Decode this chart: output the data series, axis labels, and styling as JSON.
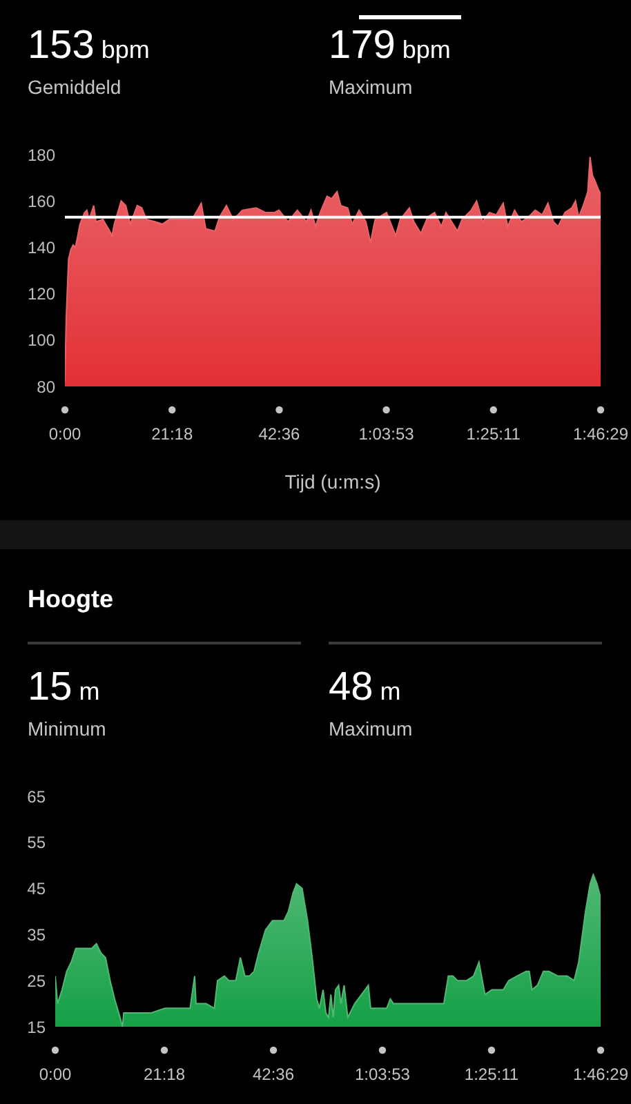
{
  "chart_data": [
    {
      "type": "area",
      "xlabel": "Tijd (u:m:s)",
      "annotations": [
        "153 bpm",
        "Gemiddeld",
        "179 bpm",
        "Maximum"
      ],
      "x": [
        0,
        16,
        44,
        71,
        98,
        125,
        153,
        180,
        235,
        262,
        289,
        344,
        371,
        453,
        535,
        562,
        589,
        671,
        726,
        780,
        862,
        917,
        971,
        1080,
        1162,
        1244,
        1408,
        1517,
        1626,
        1680,
        1790,
        1844,
        1926,
        2008,
        2117,
        2281,
        2390,
        2499,
        2553,
        2662,
        2772,
        2881,
        2935,
        2990,
        3044,
        3126,
        3181,
        3246,
        3290,
        3372,
        3426,
        3508,
        3590,
        3645,
        3699,
        3836,
        3945,
        3999,
        4108,
        4163,
        4245,
        4327,
        4408,
        4490,
        4545,
        4681,
        4736,
        4845,
        4910,
        4981,
        5063,
        5145,
        5227,
        5281,
        5363,
        5445,
        5527,
        5609,
        5691,
        5761,
        5827,
        5882,
        5963,
        6045,
        6089,
        6127,
        6182,
        6236,
        6263,
        6291,
        6318,
        6362,
        6389
      ],
      "values": [
        82,
        110,
        135,
        139,
        141,
        140,
        145,
        150,
        155,
        156,
        152,
        158,
        151,
        152,
        147,
        145,
        150,
        160,
        158,
        150,
        158,
        157,
        152,
        151,
        150,
        152,
        152,
        152,
        159,
        148,
        147,
        153,
        158,
        152,
        156,
        157,
        155,
        155,
        156,
        151,
        156,
        151,
        156,
        149,
        155,
        162,
        161,
        164,
        158,
        157,
        150,
        156,
        151,
        142,
        152,
        155,
        145,
        152,
        157,
        151,
        146,
        153,
        155,
        149,
        155,
        147,
        152,
        156,
        160,
        151,
        155,
        154,
        159,
        149,
        156,
        151,
        153,
        156,
        154,
        159,
        151,
        149,
        155,
        157,
        160,
        153,
        158,
        164,
        179,
        171,
        169,
        165,
        163
      ],
      "color": "#e23036",
      "xlim": [
        0,
        6389
      ],
      "xticks": [
        {
          "value": 0,
          "label": "0:00"
        },
        {
          "value": 1278,
          "label": "21:18"
        },
        {
          "value": 2556,
          "label": "42:36"
        },
        {
          "value": 3833,
          "label": "1:03:53"
        },
        {
          "value": 5111,
          "label": "1:25:11"
        },
        {
          "value": 6389,
          "label": "1:46:29"
        }
      ],
      "ylim": [
        80,
        180
      ],
      "yticks": [
        80,
        100,
        120,
        140,
        160,
        180
      ],
      "ref_lines": [
        {
          "axis": "y",
          "value": 153,
          "color": "#ffffff"
        }
      ]
    },
    {
      "type": "area",
      "title": "Hoogte",
      "annotations": [
        "15 m",
        "Minimum",
        "48 m",
        "Maximum"
      ],
      "x": [
        0,
        27,
        80,
        134,
        187,
        241,
        278,
        348,
        428,
        482,
        536,
        589,
        643,
        696,
        760,
        787,
        803,
        830,
        857,
        964,
        1125,
        1285,
        1446,
        1580,
        1633,
        1649,
        1767,
        1864,
        1901,
        1981,
        2035,
        2115,
        2169,
        2222,
        2276,
        2329,
        2383,
        2463,
        2544,
        2597,
        2678,
        2731,
        2785,
        2827,
        2892,
        2956,
        3010,
        3063,
        3095,
        3138,
        3170,
        3202,
        3229,
        3256,
        3283,
        3320,
        3347,
        3384,
        3427,
        3508,
        3588,
        3668,
        3695,
        3802,
        3882,
        3925,
        3963,
        4123,
        4284,
        4445,
        4552,
        4605,
        4659,
        4712,
        4819,
        4900,
        4964,
        5034,
        5114,
        5248,
        5312,
        5409,
        5516,
        5553,
        5585,
        5649,
        5719,
        5783,
        5890,
        5997,
        6078,
        6132,
        6212,
        6266,
        6303,
        6346,
        6389
      ],
      "values": [
        26,
        20,
        23,
        27,
        29,
        32,
        32,
        32,
        32,
        33,
        31,
        30,
        25,
        21,
        17,
        15,
        18,
        18,
        18,
        18,
        18,
        19,
        19,
        19,
        26,
        20,
        20,
        19,
        25,
        26,
        25,
        25,
        30,
        26,
        26,
        27,
        31,
        36,
        38,
        38,
        38,
        40,
        44,
        46,
        45,
        38,
        30,
        21,
        19,
        23,
        18,
        17,
        22,
        17,
        23,
        24,
        20,
        24,
        17,
        20,
        22,
        24,
        19,
        19,
        19,
        21,
        20,
        20,
        20,
        20,
        20,
        26,
        26,
        25,
        25,
        26,
        29,
        22,
        23,
        23,
        25,
        26,
        27,
        27,
        23,
        24,
        27,
        27,
        26,
        26,
        25,
        29,
        40,
        46,
        48,
        46,
        43
      ],
      "color": "#15a046",
      "xlim": [
        0,
        6389
      ],
      "xticks": [
        {
          "value": 0,
          "label": "0:00"
        },
        {
          "value": 1278,
          "label": "21:18"
        },
        {
          "value": 2556,
          "label": "42:36"
        },
        {
          "value": 3833,
          "label": "1:03:53"
        },
        {
          "value": 5111,
          "label": "1:25:11"
        },
        {
          "value": 6389,
          "label": "1:46:29"
        }
      ],
      "ylim": [
        15,
        65
      ],
      "yticks": [
        15,
        25,
        35,
        45,
        55,
        65
      ]
    }
  ]
}
